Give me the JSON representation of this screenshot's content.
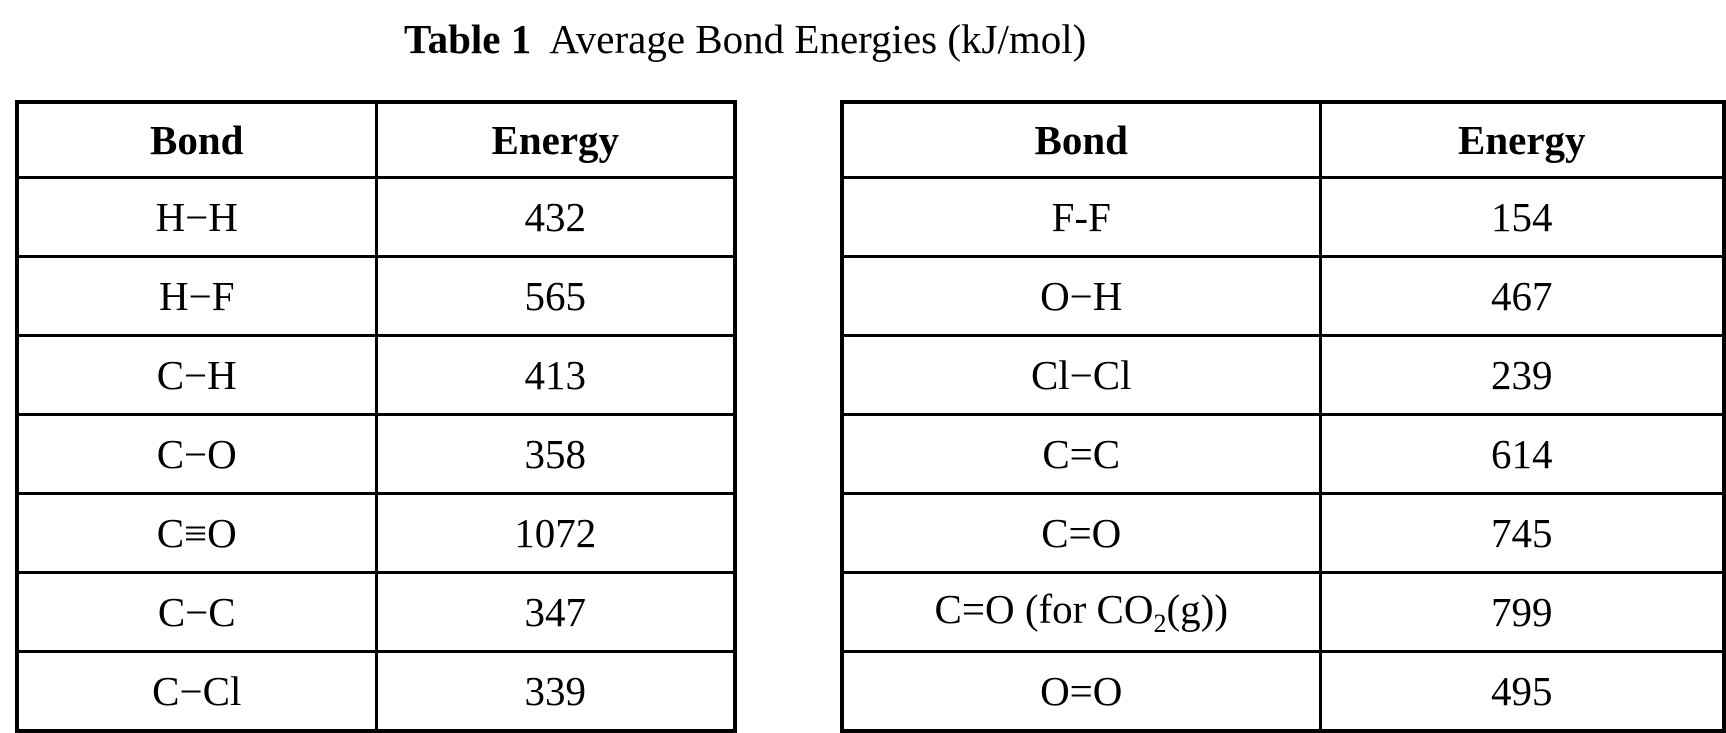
{
  "colors": {
    "background": "#ffffff",
    "text": "#000000",
    "table_border": "#000000"
  },
  "title": {
    "label_bold": "Table 1",
    "label_rest": "Average Bond Energies (kJ/mol)"
  },
  "tables": [
    {
      "name": "left",
      "headers": {
        "bond": "Bond",
        "energy": "Energy"
      },
      "rows": [
        {
          "bond": "H−H",
          "energy": "432"
        },
        {
          "bond": "H−F",
          "energy": "565"
        },
        {
          "bond": "C−H",
          "energy": "413"
        },
        {
          "bond": "C−O",
          "energy": "358"
        },
        {
          "bond": "C≡O",
          "energy": "1072"
        },
        {
          "bond": "C−C",
          "energy": "347"
        },
        {
          "bond": "C−Cl",
          "energy": "339"
        }
      ]
    },
    {
      "name": "right",
      "headers": {
        "bond": "Bond",
        "energy": "Energy"
      },
      "rows": [
        {
          "bond": "F-F",
          "energy": "154"
        },
        {
          "bond": "O−H",
          "energy": "467"
        },
        {
          "bond": "Cl−Cl",
          "energy": "239"
        },
        {
          "bond": "C=C",
          "energy": "614"
        },
        {
          "bond": "C=O",
          "energy": "745"
        },
        {
          "bond": "C=O (for CO",
          "bond_sub": "2",
          "bond_tail": "(g))",
          "energy": "799"
        },
        {
          "bond": "O=O",
          "energy": "495"
        }
      ]
    }
  ]
}
